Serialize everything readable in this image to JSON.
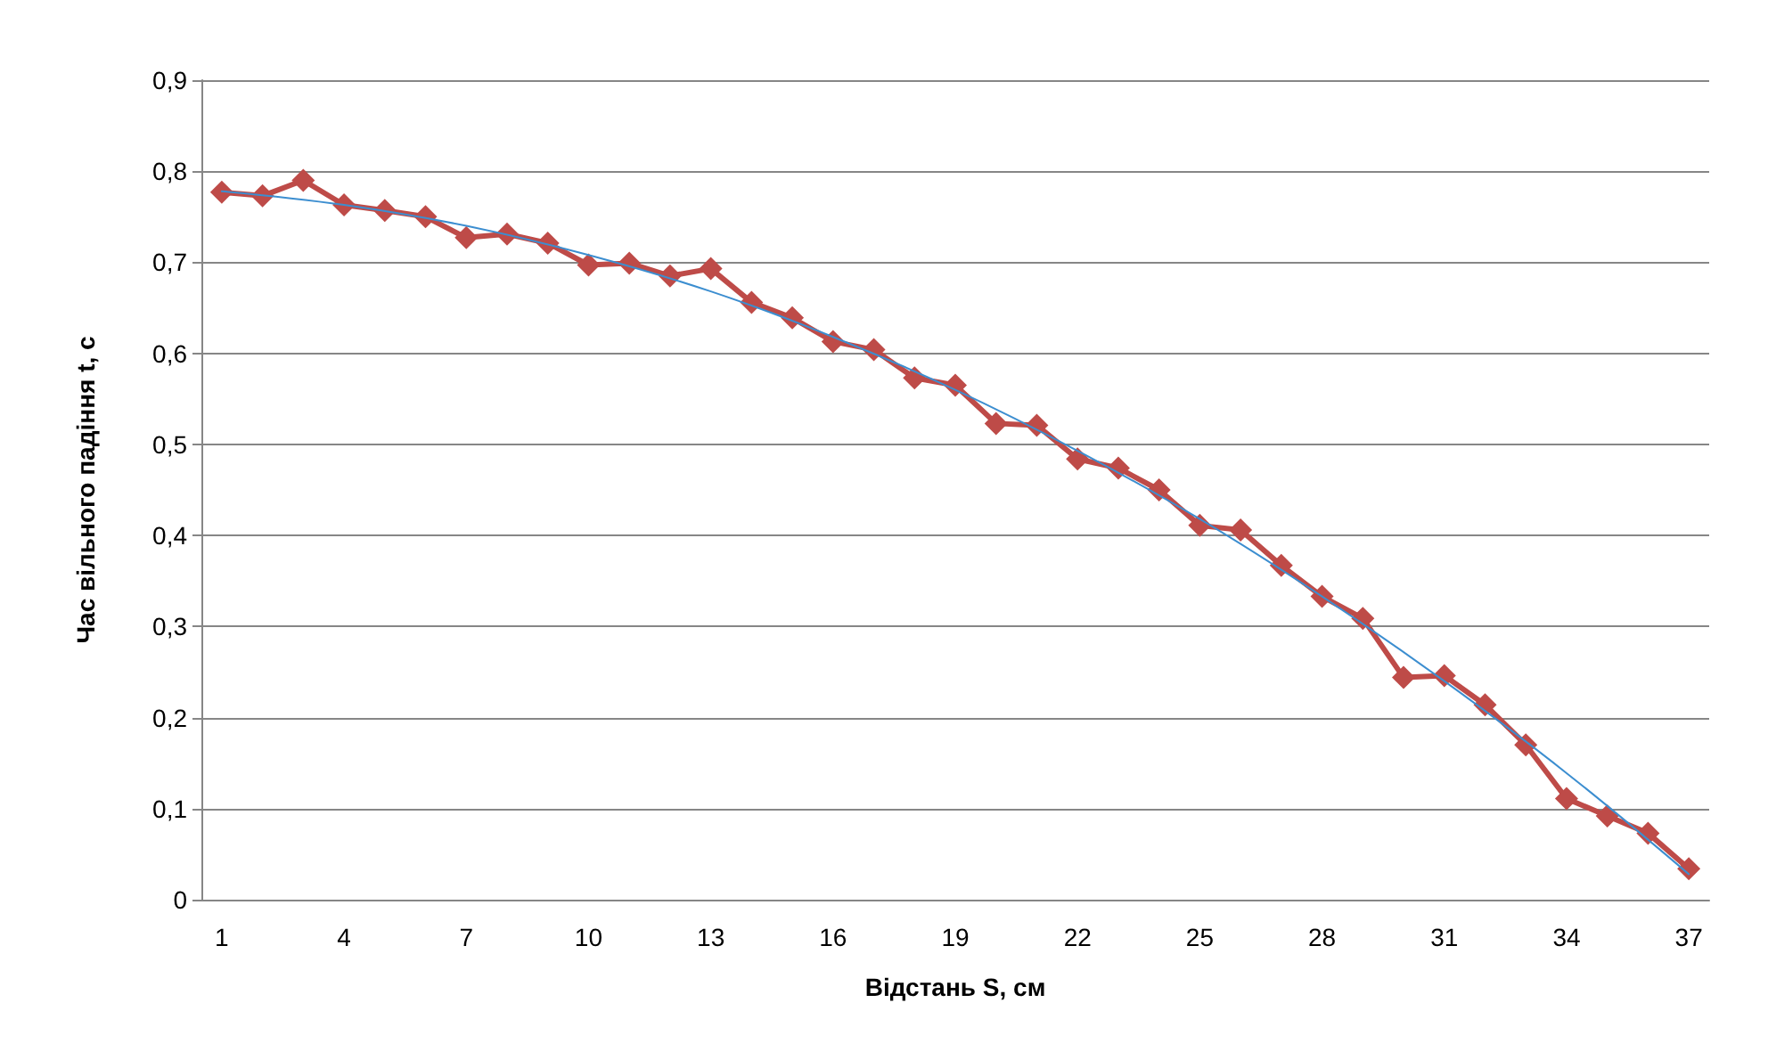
{
  "chart_data": {
    "type": "line",
    "xlabel": "Відстань S, см",
    "ylabel": "Час вільного падіння t, с",
    "categories": [
      "1",
      null,
      null,
      "4",
      null,
      null,
      "7",
      null,
      null,
      "10",
      null,
      null,
      "13",
      null,
      null,
      "16",
      null,
      null,
      "19",
      null,
      null,
      "22",
      null,
      null,
      "25",
      null,
      null,
      "28",
      null,
      null,
      "31",
      null,
      null,
      "34",
      null,
      null,
      "37"
    ],
    "series": [
      {
        "color": "#be4b48",
        "marker": "diamond",
        "values": [
          0.777,
          0.773,
          0.79,
          0.763,
          0.757,
          0.75,
          0.727,
          0.731,
          0.721,
          0.697,
          0.699,
          0.685,
          0.693,
          0.656,
          0.639,
          0.613,
          0.604,
          0.573,
          0.565,
          0.523,
          0.521,
          0.484,
          0.474,
          0.45,
          0.411,
          0.406,
          0.367,
          0.333,
          0.309,
          0.244,
          0.246,
          0.214,
          0.17,
          0.111,
          0.092,
          0.073,
          0.034
        ]
      },
      {
        "color": "#3c8ed0",
        "marker": "none",
        "values": [
          0.778,
          null,
          null,
          0.763,
          null,
          null,
          0.74,
          null,
          null,
          0.708,
          null,
          null,
          0.668,
          null,
          null,
          0.618,
          null,
          null,
          0.56,
          null,
          null,
          0.493,
          null,
          null,
          0.418,
          null,
          null,
          0.333,
          null,
          null,
          0.24,
          null,
          null,
          0.139,
          null,
          null,
          0.028
        ]
      }
    ],
    "ylim": [
      0,
      0.9
    ],
    "yticks": [
      0,
      {
        "value": 0.1,
        "label": "0,1"
      },
      {
        "value": 0.2,
        "label": "0,2"
      },
      {
        "value": 0.3,
        "label": "0,3"
      },
      {
        "value": 0.4,
        "label": "0,4"
      },
      {
        "value": 0.5,
        "label": "0,5"
      },
      {
        "value": 0.6,
        "label": "0,6"
      },
      {
        "value": 0.7,
        "label": "0,7"
      },
      {
        "value": 0.8,
        "label": "0,8"
      },
      {
        "value": 0.9,
        "label": "0,9"
      }
    ],
    "grid": "y"
  }
}
